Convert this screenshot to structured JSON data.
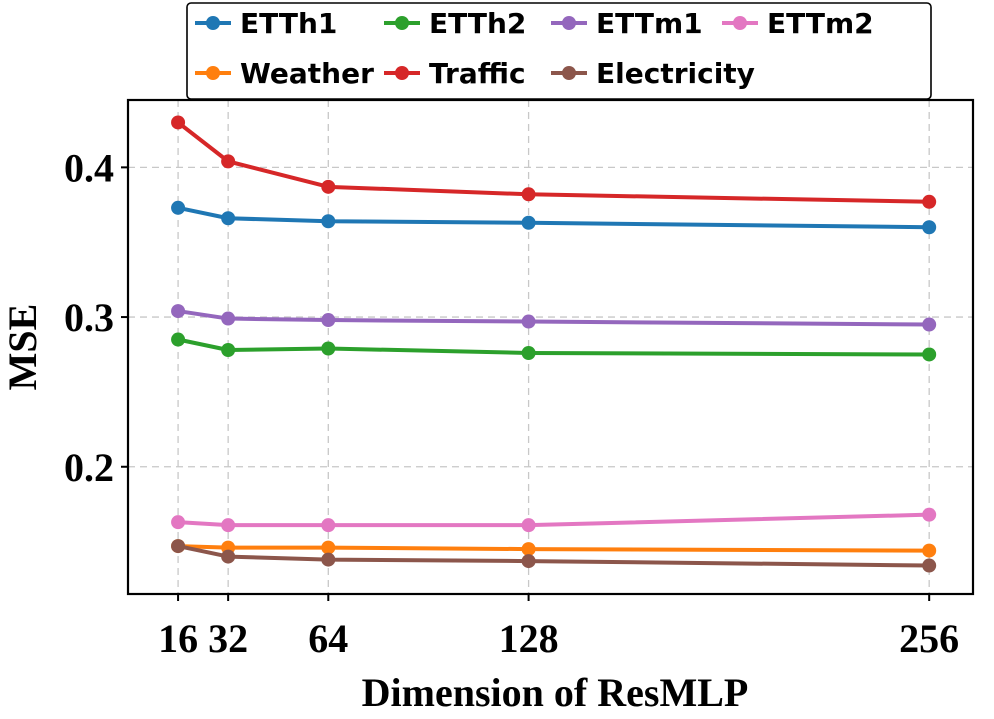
{
  "chart_data": {
    "type": "line",
    "title": "",
    "xlabel": "Dimension of ResMLP",
    "ylabel": "MSE",
    "x": [
      16,
      32,
      64,
      128,
      256
    ],
    "x_tick_labels": [
      "16",
      "32",
      "64",
      "128",
      "256"
    ],
    "y_ticks": [
      0.2,
      0.3,
      0.4
    ],
    "y_tick_labels": [
      "0.2",
      "0.3",
      "0.4"
    ],
    "xlim": [
      0,
      270
    ],
    "ylim": [
      0.115,
      0.445
    ],
    "grid": true,
    "legend_position": "top",
    "series": [
      {
        "name": "ETTh1",
        "color": "#1f77b4",
        "values": [
          0.373,
          0.366,
          0.364,
          0.363,
          0.36
        ]
      },
      {
        "name": "ETTh2",
        "color": "#2ca02c",
        "values": [
          0.285,
          0.278,
          0.279,
          0.276,
          0.275
        ]
      },
      {
        "name": "ETTm1",
        "color": "#9467bd",
        "values": [
          0.304,
          0.299,
          0.298,
          0.297,
          0.295
        ]
      },
      {
        "name": "ETTm2",
        "color": "#e377c2",
        "values": [
          0.163,
          0.161,
          0.161,
          0.161,
          0.168
        ]
      },
      {
        "name": "Weather",
        "color": "#ff7f0e",
        "values": [
          0.147,
          0.146,
          0.146,
          0.145,
          0.144
        ]
      },
      {
        "name": "Traffic",
        "color": "#d62728",
        "values": [
          0.43,
          0.404,
          0.387,
          0.382,
          0.377
        ]
      },
      {
        "name": "Electricity",
        "color": "#8c564b",
        "values": [
          0.147,
          0.14,
          0.138,
          0.137,
          0.134
        ]
      }
    ]
  }
}
